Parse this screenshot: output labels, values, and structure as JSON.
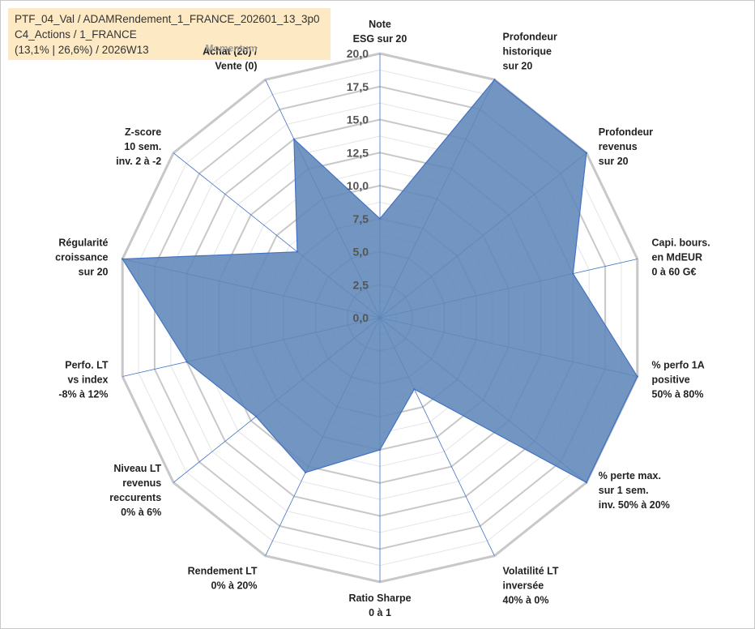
{
  "header": {
    "line1": "PTF_04_Val / ADAMRendement_1_FRANCE_202601_13_3p0",
    "line2": "C4_Actions / 1_FRANCE",
    "line3": "(13,1% | 26,6%) / 2026W13"
  },
  "colors": {
    "fill": "#5f87b8",
    "stroke": "#4472c4",
    "ring": "#c8c8c8",
    "spoke": "#4472c4",
    "infobox": "#fde9c4"
  },
  "chart_data": {
    "type": "radar",
    "title": "",
    "rmin": 0,
    "rmax": 20,
    "tick_step": 2.5,
    "tick_labels": [
      "0,0",
      "2,5",
      "5,0",
      "7,5",
      "10,0",
      "12,5",
      "15,0",
      "17,5",
      "20,0"
    ],
    "ring_fill_step": 1.25,
    "grid": true,
    "annotation": "Momentum",
    "axes": [
      {
        "label": [
          "Note",
          "ESG sur 20"
        ],
        "value": 7.5
      },
      {
        "label": [
          "Profondeur",
          "historique",
          "sur 20"
        ],
        "value": 20
      },
      {
        "label": [
          "Profondeur",
          "revenus",
          "sur 20"
        ],
        "value": 20
      },
      {
        "label": [
          "Capi. bours.",
          "en MdEUR",
          "0 à 60 G€"
        ],
        "value": 15
      },
      {
        "label": [
          "% perfo 1A",
          "positive",
          "50% à 80%"
        ],
        "value": 20
      },
      {
        "label": [
          "% perte max.",
          "sur 1 sem.",
          "inv. 50% à 20%"
        ],
        "value": 20
      },
      {
        "label": [
          "Volatilité LT",
          "inversée",
          "40% à 0%"
        ],
        "value": 6
      },
      {
        "label": [
          "Ratio Sharpe",
          "0 à 1"
        ],
        "value": 10
      },
      {
        "label": [
          "Rendement LT",
          "0% à 20%"
        ],
        "value": 13
      },
      {
        "label": [
          "Niveau LT",
          "revenus",
          "reccurents",
          "0% à 6%"
        ],
        "value": 12
      },
      {
        "label": [
          "Perfo. LT",
          "vs index",
          "-8% à 12%"
        ],
        "value": 15
      },
      {
        "label": [
          "Régularité",
          "croissance",
          "sur 20"
        ],
        "value": 20
      },
      {
        "label": [
          "Z-score",
          "10 sem.",
          "inv. 2 à -2"
        ],
        "value": 8
      },
      {
        "label": [
          "Achat (20) /",
          "Vente (0)"
        ],
        "value": 15
      }
    ]
  }
}
